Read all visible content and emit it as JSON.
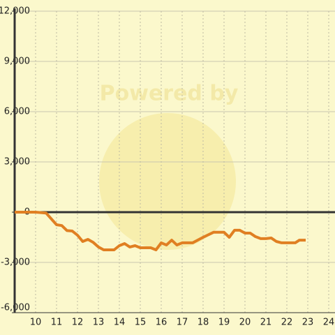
{
  "chart_data": {
    "type": "line",
    "watermark": "Powered by",
    "x": [
      9.0,
      10.0,
      10.5,
      11.0,
      11.25,
      11.5,
      11.75,
      12.0,
      12.25,
      12.5,
      12.75,
      13.0,
      13.25,
      13.75,
      14.0,
      14.25,
      14.5,
      14.75,
      15.0,
      15.5,
      15.75,
      16.0,
      16.25,
      16.5,
      16.75,
      17.0,
      17.5,
      18.0,
      18.5,
      19.0,
      19.25,
      19.5,
      19.75,
      20.0,
      20.25,
      20.5,
      20.75,
      21.0,
      21.25,
      21.5,
      21.75,
      22.4,
      22.6,
      22.9
    ],
    "series": [
      {
        "color": "#e07f22",
        "values": [
          0,
          0,
          -50,
          -750,
          -800,
          -1100,
          -1125,
          -1375,
          -1750,
          -1625,
          -1800,
          -2080,
          -2250,
          -2250,
          -2000,
          -1875,
          -2080,
          -2000,
          -2125,
          -2125,
          -2250,
          -1830,
          -1960,
          -1670,
          -1960,
          -1830,
          -1830,
          -1500,
          -1200,
          -1200,
          -1500,
          -1080,
          -1080,
          -1250,
          -1250,
          -1460,
          -1580,
          -1580,
          -1540,
          -1750,
          -1830,
          -1830,
          -1670,
          -1670
        ]
      }
    ],
    "xlim": [
      9.0,
      24.3
    ],
    "xticks": [
      10,
      11,
      12,
      13,
      14,
      15,
      16,
      17,
      18,
      19,
      20,
      21,
      22,
      23,
      24
    ],
    "ylim": [
      -6000,
      12000
    ],
    "yticks": [
      {
        "value": -6000,
        "label": "-6,000"
      },
      {
        "value": -3000,
        "label": "-3,000"
      },
      0,
      {
        "value": 3000,
        "label": "3,000"
      },
      {
        "value": 6000,
        "label": "6,000"
      },
      {
        "value": 9000,
        "label": "9,000"
      },
      {
        "value": 12000,
        "label": "12,000"
      }
    ],
    "grid": true
  }
}
